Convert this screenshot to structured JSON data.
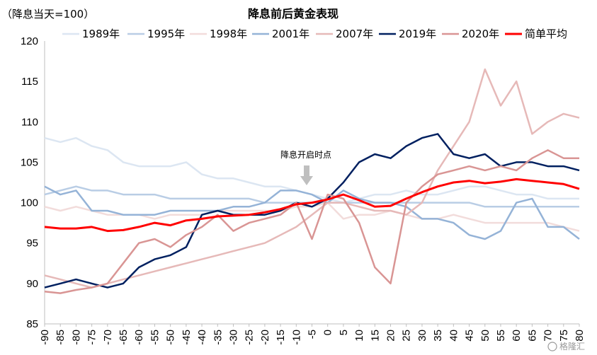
{
  "chart_data": {
    "type": "line",
    "title": "降息前后黄金表现",
    "unit_label": "（降息当天=100）",
    "annotation": "降息开启时点",
    "watermark": "格隆汇",
    "ylim": [
      85,
      120
    ],
    "yticks": [
      85,
      90,
      95,
      100,
      105,
      110,
      115,
      120
    ],
    "xlim": [
      -90,
      80
    ],
    "xticks": [
      -90,
      -85,
      -80,
      -75,
      -70,
      -65,
      -60,
      -55,
      -50,
      -45,
      -40,
      -35,
      -30,
      -25,
      -20,
      -15,
      -10,
      -5,
      0,
      5,
      10,
      15,
      20,
      25,
      30,
      35,
      40,
      45,
      50,
      55,
      60,
      65,
      70,
      75,
      80
    ],
    "legend_position": "top",
    "series": [
      {
        "name": "1989年",
        "color": "#dce6f2",
        "width": 2.5,
        "x": [
          -90,
          -85,
          -80,
          -75,
          -70,
          -65,
          -60,
          -55,
          -50,
          -45,
          -40,
          -35,
          -30,
          -25,
          -20,
          -15,
          -10,
          -5,
          0,
          5,
          10,
          15,
          20,
          25,
          30,
          35,
          40,
          45,
          50,
          55,
          60,
          65,
          70,
          75,
          80
        ],
        "y": [
          108,
          107.5,
          108,
          107,
          106.5,
          105,
          104.5,
          104.5,
          104.5,
          105,
          103.5,
          103,
          103,
          102.5,
          102,
          102,
          101.5,
          101,
          100.5,
          100,
          100.5,
          101,
          101,
          101.5,
          101,
          101,
          101.5,
          102,
          102,
          101.5,
          101,
          101,
          100.5,
          100.5,
          100.5
        ]
      },
      {
        "name": "1995年",
        "color": "#b9cde5",
        "width": 2.5,
        "x": [
          -90,
          -85,
          -80,
          -75,
          -70,
          -65,
          -60,
          -55,
          -50,
          -45,
          -40,
          -35,
          -30,
          -25,
          -20,
          -15,
          -10,
          -5,
          0,
          5,
          10,
          15,
          20,
          25,
          30,
          35,
          40,
          45,
          50,
          55,
          60,
          65,
          70,
          75,
          80
        ],
        "y": [
          101,
          101.5,
          102,
          101.5,
          101.5,
          101,
          101,
          101,
          100.5,
          100.5,
          100.5,
          100.5,
          100.5,
          100.5,
          100,
          100,
          100,
          100,
          100,
          100,
          100,
          100,
          100,
          100,
          100,
          100,
          100,
          100,
          99.5,
          99.5,
          99.5,
          99.5,
          99.5,
          99.5,
          99.5
        ]
      },
      {
        "name": "1998年",
        "color": "#f2dcdb",
        "width": 2.5,
        "x": [
          -90,
          -85,
          -80,
          -75,
          -70,
          -65,
          -60,
          -55,
          -50,
          -45,
          -40,
          -35,
          -30,
          -25,
          -20,
          -15,
          -10,
          -5,
          0,
          5,
          10,
          15,
          20,
          25,
          30,
          35,
          40,
          45,
          50,
          55,
          60,
          65,
          70,
          75,
          80
        ],
        "y": [
          99.5,
          99,
          99.5,
          99,
          98.5,
          98.5,
          98.5,
          98,
          98.5,
          98.5,
          98.5,
          99,
          99,
          99,
          99,
          99,
          99.5,
          99.5,
          100,
          98,
          98.5,
          98.5,
          99,
          98.5,
          98,
          98,
          98.5,
          98,
          97.5,
          97.5,
          97.5,
          97.5,
          97.5,
          97,
          96.5
        ]
      },
      {
        "name": "2001年",
        "color": "#95b3d7",
        "width": 2.5,
        "x": [
          -90,
          -85,
          -80,
          -75,
          -70,
          -65,
          -60,
          -55,
          -50,
          -45,
          -40,
          -35,
          -30,
          -25,
          -20,
          -15,
          -10,
          -5,
          0,
          5,
          10,
          15,
          20,
          25,
          30,
          35,
          40,
          45,
          50,
          55,
          60,
          65,
          70,
          75,
          80
        ],
        "y": [
          102,
          101,
          101.5,
          99,
          99,
          98.5,
          98.5,
          98.5,
          99,
          99,
          99,
          99,
          99.5,
          99.5,
          100,
          101.5,
          101.5,
          101,
          100,
          101.5,
          100.5,
          100,
          100,
          99.5,
          98,
          98,
          97.5,
          96,
          95.5,
          96.5,
          100,
          100.5,
          97,
          97,
          95.5
        ]
      },
      {
        "name": "2007年",
        "color": "#e6b9b8",
        "width": 2.5,
        "x": [
          -90,
          -85,
          -80,
          -75,
          -70,
          -65,
          -60,
          -55,
          -50,
          -45,
          -40,
          -35,
          -30,
          -25,
          -20,
          -15,
          -10,
          -5,
          0,
          5,
          10,
          15,
          20,
          25,
          30,
          35,
          40,
          45,
          50,
          55,
          60,
          65,
          70,
          75,
          80
        ],
        "y": [
          91,
          90.5,
          90,
          89.5,
          90,
          90.5,
          91,
          91.5,
          92,
          92.5,
          93,
          93.5,
          94,
          94.5,
          95,
          96,
          97,
          98.5,
          100,
          100,
          99.5,
          99,
          99,
          98.5,
          100,
          104,
          107,
          110,
          116.5,
          112,
          115,
          108.5,
          110,
          111,
          110.5
        ]
      },
      {
        "name": "2019年",
        "color": "#002060",
        "width": 2.5,
        "x": [
          -90,
          -85,
          -80,
          -75,
          -70,
          -65,
          -60,
          -55,
          -50,
          -45,
          -40,
          -35,
          -30,
          -25,
          -20,
          -15,
          -10,
          -5,
          0,
          5,
          10,
          15,
          20,
          25,
          30,
          35,
          40,
          45,
          50,
          55,
          60,
          65,
          70,
          75,
          80
        ],
        "y": [
          89.5,
          90,
          90.5,
          90,
          89.5,
          90,
          92,
          93,
          93.5,
          94.5,
          98.5,
          99,
          98.5,
          98.5,
          98.5,
          99,
          100,
          99.5,
          100.5,
          102.5,
          105,
          106,
          105.5,
          107,
          108,
          108.5,
          106,
          105.5,
          106,
          104.5,
          105,
          105,
          104.5,
          104.5,
          104
        ]
      },
      {
        "name": "2020年",
        "color": "#d99594",
        "width": 2.5,
        "x": [
          -90,
          -85,
          -80,
          -75,
          -70,
          -65,
          -60,
          -55,
          -50,
          -45,
          -40,
          -35,
          -30,
          -25,
          -20,
          -15,
          -10,
          -5,
          0,
          5,
          10,
          15,
          20,
          25,
          30,
          35,
          40,
          45,
          50,
          55,
          60,
          65,
          70,
          75,
          80
        ],
        "y": [
          89,
          88.8,
          89.2,
          89.5,
          90,
          92.5,
          95,
          95.5,
          94.5,
          96,
          97,
          98.5,
          96.5,
          97.5,
          98,
          98.5,
          100,
          95.5,
          101,
          100.5,
          97.5,
          92,
          90,
          100,
          102,
          103.5,
          104,
          104.5,
          104,
          104.5,
          104,
          105.5,
          106.5,
          105.5,
          105.5
        ]
      },
      {
        "name": "简单平均",
        "color": "#ff0000",
        "width": 3,
        "x": [
          -90,
          -85,
          -80,
          -75,
          -70,
          -65,
          -60,
          -55,
          -50,
          -45,
          -40,
          -35,
          -30,
          -25,
          -20,
          -15,
          -10,
          -5,
          0,
          5,
          10,
          15,
          20,
          25,
          30,
          35,
          40,
          45,
          50,
          55,
          60,
          65,
          70,
          75,
          80
        ],
        "y": [
          97,
          96.8,
          96.8,
          97,
          96.5,
          96.6,
          97,
          97.5,
          97.2,
          97.8,
          98,
          98.3,
          98.4,
          98.5,
          98.8,
          99.2,
          99.8,
          100,
          100.4,
          101,
          100.3,
          99.5,
          99.6,
          100.5,
          101.3,
          102,
          102.5,
          102.7,
          102.4,
          102.6,
          102.9,
          102.7,
          102.5,
          102.3,
          101.7
        ]
      }
    ]
  }
}
